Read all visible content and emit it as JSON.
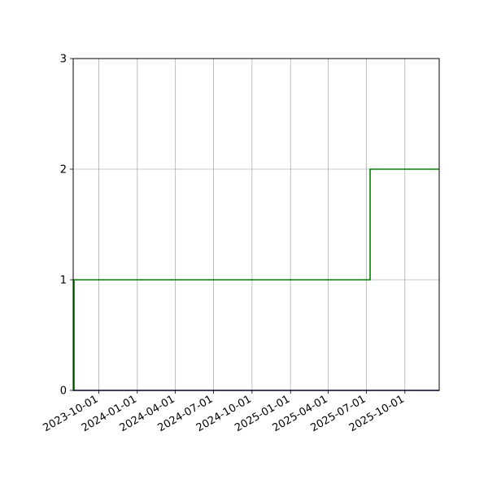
{
  "chart_data": {
    "type": "line",
    "title": "",
    "xlabel": "",
    "ylabel": "",
    "x_axis_kind": "date",
    "xlim": [
      "2023-08-01",
      "2025-12-22"
    ],
    "ylim": [
      0,
      3
    ],
    "grid": true,
    "legend": "none",
    "yticks": [
      0,
      1,
      2,
      3
    ],
    "xticks": [
      "2023-10-01",
      "2024-01-01",
      "2024-04-01",
      "2024-07-01",
      "2024-10-01",
      "2025-01-01",
      "2025-04-01",
      "2025-07-01",
      "2025-10-01"
    ],
    "series": [
      {
        "color": "#008000",
        "step": true,
        "x": [
          "2023-08-01",
          "2023-08-03",
          "2023-08-03",
          "2025-07-10",
          "2025-07-10",
          "2025-12-22"
        ],
        "y": [
          0,
          0,
          1,
          1,
          2,
          2
        ]
      },
      {
        "color": "#00008b",
        "step": false,
        "x": [
          "2023-08-01",
          "2025-12-22"
        ],
        "y": [
          0,
          0
        ]
      }
    ]
  }
}
